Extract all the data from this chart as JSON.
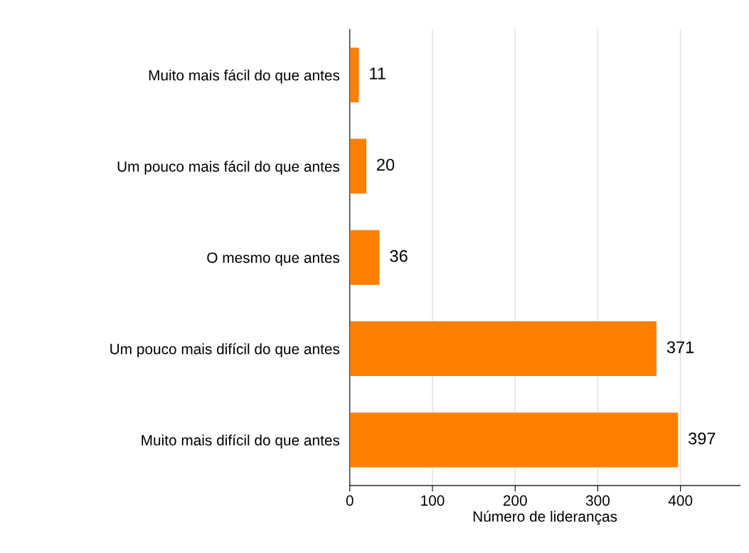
{
  "chart_data": {
    "type": "bar",
    "orientation": "horizontal",
    "xlabel": "Número de lideranças",
    "categories": [
      "Muito mais fácil do que antes",
      "Um pouco mais fácil do que antes",
      "O mesmo que antes",
      "Um pouco mais difícil do que antes",
      "Muito mais difícil do que antes"
    ],
    "values": [
      11,
      20,
      36,
      371,
      397
    ],
    "color": "#ff8000",
    "xlim": [
      0,
      472
    ],
    "xticks": [
      0,
      100,
      200,
      300,
      400
    ],
    "grid": "x",
    "data_labels": true
  }
}
